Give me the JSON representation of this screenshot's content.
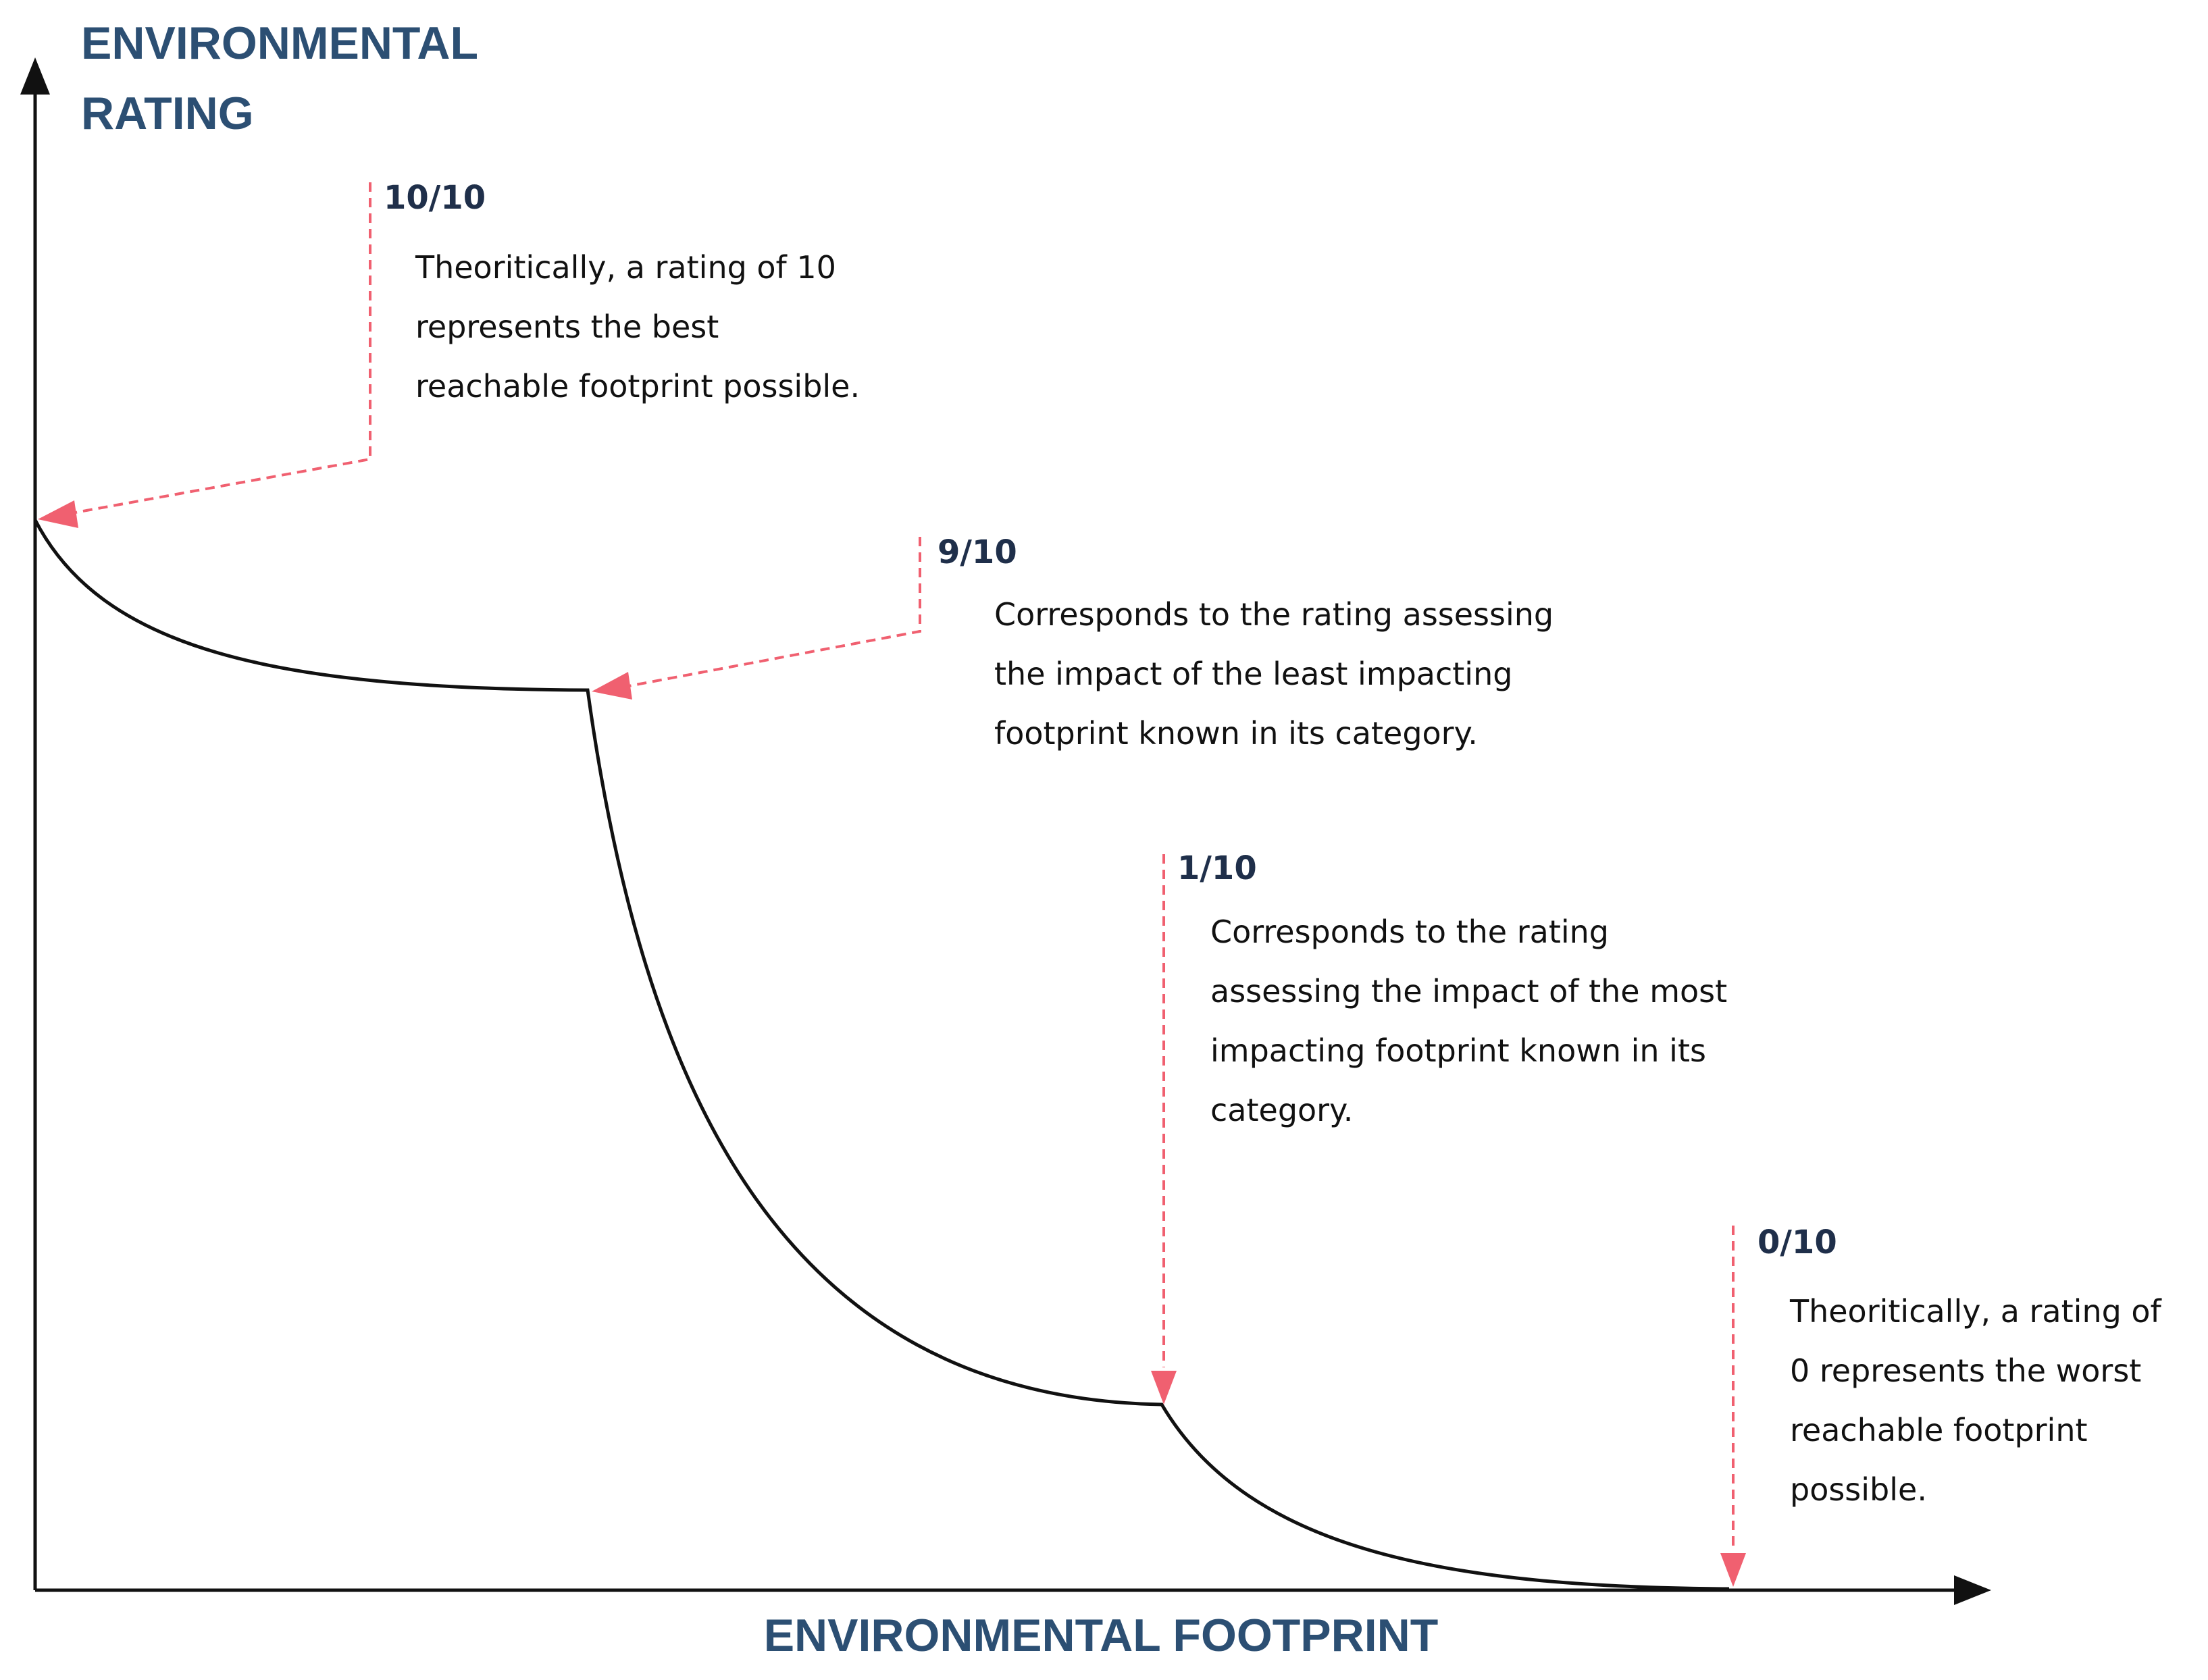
{
  "axes": {
    "y_title": "ENVIRONMENTAL RATING",
    "x_title": "ENVIRONMENTAL FOOTPRINT"
  },
  "annotations": [
    {
      "rating": "10/10",
      "lines": [
        "Theoritically, a rating of 10",
        "represents the best",
        "reachable footprint possible."
      ]
    },
    {
      "rating": "9/10",
      "lines": [
        "Corresponds to the rating assessing",
        "the impact of the least impacting",
        "footprint known in its category."
      ]
    },
    {
      "rating": "1/10",
      "lines": [
        "Corresponds to the rating",
        "assessing the impact of the most",
        "impacting footprint known in its",
        "category."
      ]
    },
    {
      "rating": "0/10",
      "lines": [
        "Theoritically, a rating of",
        "0 represents the worst",
        "reachable footprint",
        "possible."
      ]
    }
  ],
  "colors": {
    "axis_title": "#2c4f73",
    "rating_label": "#1f2f4a",
    "curve": "#111111",
    "pointer": "#f06070"
  }
}
